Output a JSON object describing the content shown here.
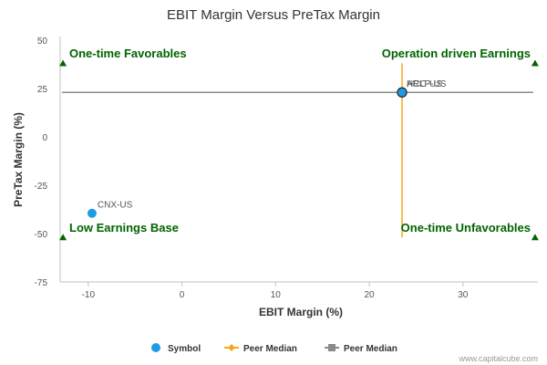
{
  "chart_data": {
    "type": "scatter",
    "title": "EBIT Margin Versus PreTax Margin",
    "xlabel": "EBIT Margin (%)",
    "ylabel": "PreTax Margin (%)",
    "xlim": [
      -13,
      38
    ],
    "ylim": [
      -75,
      50
    ],
    "x_ticks": [
      -10,
      0,
      10,
      20,
      30
    ],
    "y_ticks": [
      50,
      25,
      0,
      -25,
      -50,
      -75
    ],
    "points": [
      {
        "label": "CNX-US",
        "x": -9.6,
        "y": -39.5
      },
      {
        "label": "ARLP-US",
        "x": 23.5,
        "y": 23.0
      },
      {
        "label": "HCC-US",
        "x": 23.5,
        "y": 23.0
      }
    ],
    "peer_median_x": 23.5,
    "peer_median_y": 23.0,
    "peer_median_x_range": [
      -52,
      38
    ],
    "point_color": "#1f9be6",
    "median_x_color": "#f5a623",
    "median_y_color": "#8a8a8a",
    "quadrant_color": "#006400",
    "quadrants": {
      "top_left": "One-time Favorables",
      "top_right": "Operation driven Earnings",
      "bottom_left": "Low Earnings Base",
      "bottom_right": "One-time Unfavorables"
    },
    "legend": [
      {
        "label": "Symbol",
        "marker": "circle"
      },
      {
        "label": "Peer Median",
        "marker": "diamond-line"
      },
      {
        "label": "Peer Median",
        "marker": "square-line"
      }
    ],
    "legend_position": "bottom-center",
    "grid": false
  },
  "credit": "www.capitalcube.com"
}
